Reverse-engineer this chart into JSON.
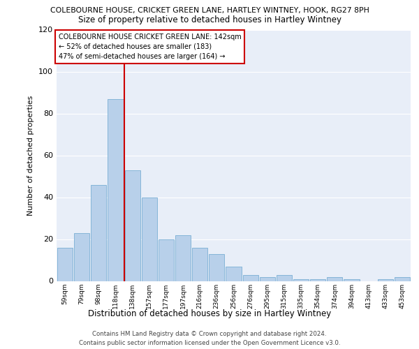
{
  "title_line1": "COLEBOURNE HOUSE, CRICKET GREEN LANE, HARTLEY WINTNEY, HOOK, RG27 8PH",
  "title_line2": "Size of property relative to detached houses in Hartley Wintney",
  "xlabel": "Distribution of detached houses by size in Hartley Wintney",
  "ylabel": "Number of detached properties",
  "categories": [
    "59sqm",
    "79sqm",
    "98sqm",
    "118sqm",
    "138sqm",
    "157sqm",
    "177sqm",
    "197sqm",
    "216sqm",
    "236sqm",
    "256sqm",
    "276sqm",
    "295sqm",
    "315sqm",
    "335sqm",
    "354sqm",
    "374sqm",
    "394sqm",
    "413sqm",
    "433sqm",
    "453sqm"
  ],
  "values": [
    16,
    23,
    46,
    87,
    53,
    40,
    20,
    22,
    16,
    13,
    7,
    3,
    2,
    3,
    1,
    1,
    2,
    1,
    0,
    1,
    2
  ],
  "bar_color": "#b8d0ea",
  "bar_edge_color": "#7aafd4",
  "vline_color": "#cc0000",
  "vline_index": 4,
  "ylim": [
    0,
    120
  ],
  "yticks": [
    0,
    20,
    40,
    60,
    80,
    100,
    120
  ],
  "annotation_box_text": "COLEBOURNE HOUSE CRICKET GREEN LANE: 142sqm\n← 52% of detached houses are smaller (183)\n47% of semi-detached houses are larger (164) →",
  "annotation_box_color": "#cc0000",
  "footer_line1": "Contains HM Land Registry data © Crown copyright and database right 2024.",
  "footer_line2": "Contains public sector information licensed under the Open Government Licence v3.0.",
  "plot_bg_color": "#e8eef8",
  "title1_fontsize": 7.8,
  "title2_fontsize": 8.5,
  "ylabel_fontsize": 7.8,
  "xlabel_fontsize": 8.5,
  "xtick_fontsize": 6.5,
  "ytick_fontsize": 8.0,
  "annotation_fontsize": 7.0,
  "footer_fontsize": 6.2
}
